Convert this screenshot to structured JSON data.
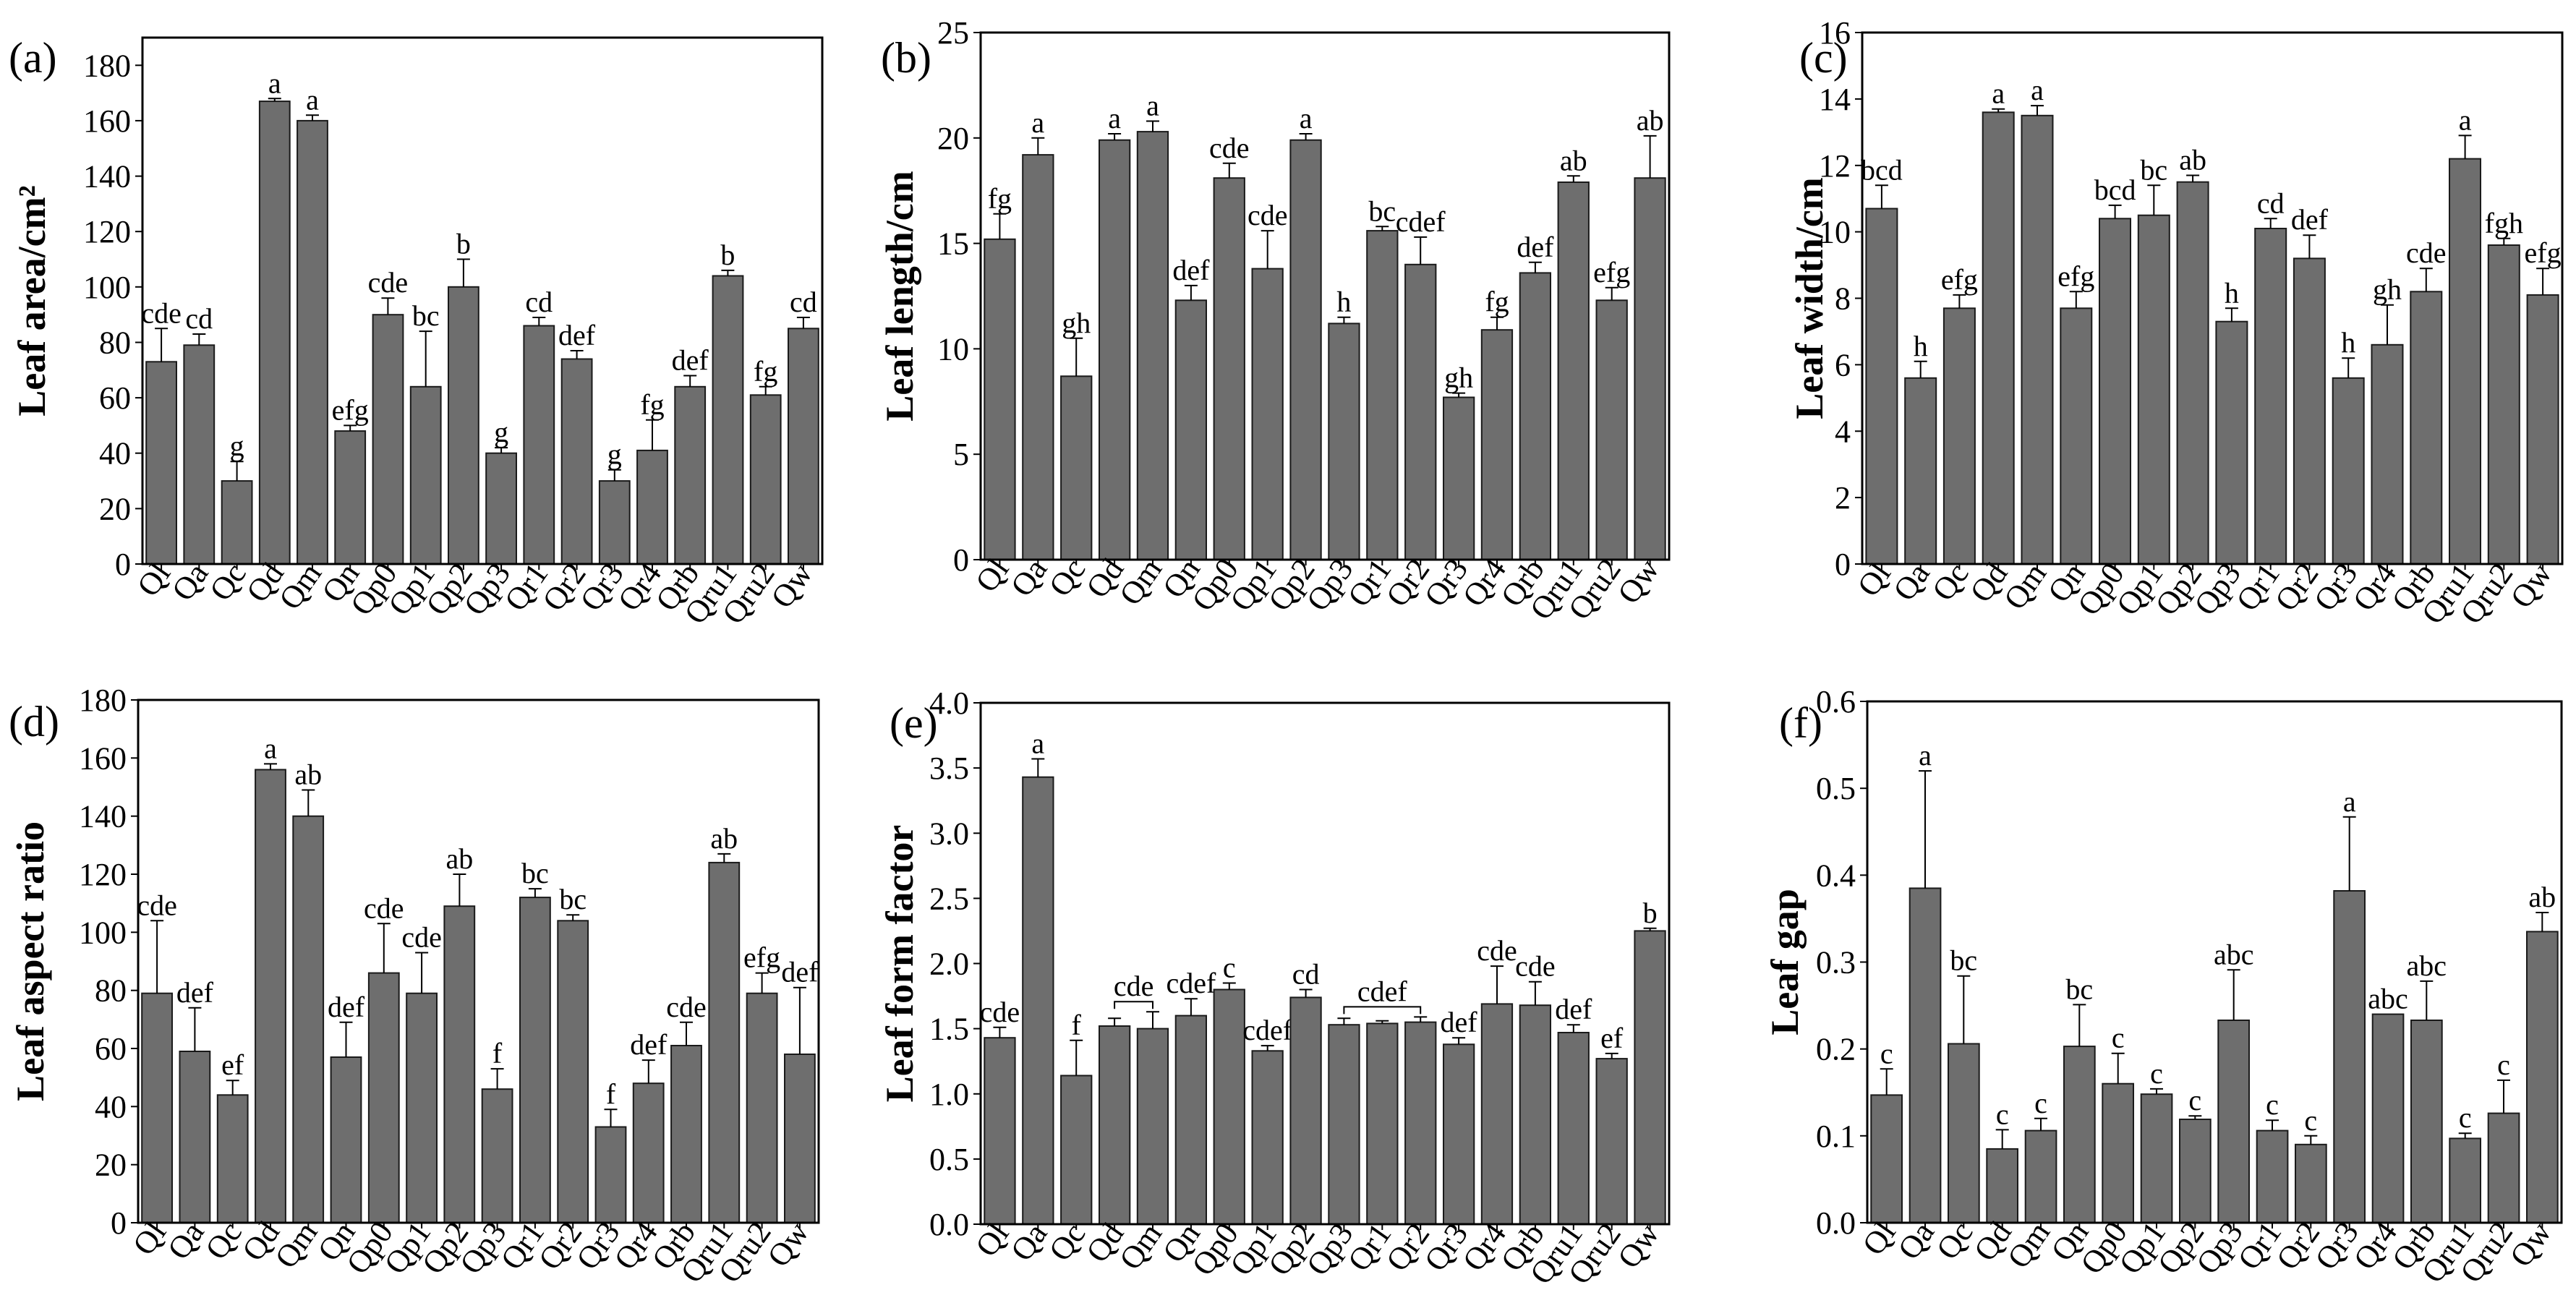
{
  "figure": {
    "colors": {
      "bar": "#6e6e6e",
      "bar_stroke": "#1a1a1a",
      "axis": "#000000"
    }
  },
  "chart_data": [
    {
      "type": "bar",
      "panel": "(a)",
      "title": "",
      "xlabel": "",
      "ylabel": "Leaf area/cm²",
      "ylim": [
        0,
        190
      ],
      "yticks": [
        0,
        20,
        40,
        60,
        80,
        100,
        120,
        140,
        160,
        180
      ],
      "categories": [
        "Ql",
        "Qa",
        "Qc",
        "Qd",
        "Qm",
        "Qn",
        "Qp0",
        "Qp1",
        "Qp2",
        "Qp3",
        "Qr1",
        "Qr2",
        "Qr3",
        "Qr4",
        "Qrb",
        "Qru1",
        "Qru2",
        "Qw"
      ],
      "values": [
        73,
        79,
        30,
        167,
        160,
        48,
        90,
        64,
        100,
        40,
        86,
        74,
        30,
        41,
        64,
        104,
        61,
        85
      ],
      "errors": [
        12,
        4,
        7,
        1,
        2,
        2,
        6,
        20,
        10,
        2,
        3,
        3,
        4,
        11,
        4,
        2,
        3,
        4
      ],
      "letters": [
        "cde",
        "cd",
        "g",
        "a",
        "a",
        "efg",
        "cde",
        "bc",
        "b",
        "g",
        "cd",
        "def",
        "g",
        "fg",
        "def",
        "b",
        "fg",
        "cd"
      ]
    },
    {
      "type": "bar",
      "panel": "(b)",
      "title": "",
      "xlabel": "",
      "ylabel": "Leaf length/cm",
      "ylim": [
        0,
        25
      ],
      "yticks": [
        0,
        5,
        10,
        15,
        20,
        25
      ],
      "categories": [
        "Ql",
        "Qa",
        "Qc",
        "Qd",
        "Qm",
        "Qn",
        "Qp0",
        "Qp1",
        "Qp2",
        "Qp3",
        "Qr1",
        "Qr2",
        "Qr3",
        "Qr4",
        "Qrb",
        "Qru1",
        "Qru2",
        "Qw"
      ],
      "values": [
        15.2,
        19.2,
        8.7,
        19.9,
        20.3,
        12.3,
        18.1,
        13.8,
        19.9,
        11.2,
        15.6,
        14.0,
        7.7,
        10.9,
        13.6,
        17.9,
        12.3,
        18.1
      ],
      "errors": [
        1.2,
        0.8,
        1.8,
        0.3,
        0.5,
        0.7,
        0.7,
        1.8,
        0.3,
        0.3,
        0.2,
        1.3,
        0.2,
        0.6,
        0.5,
        0.3,
        0.6,
        2.0
      ],
      "letters": [
        "fg",
        "a",
        "gh",
        "a",
        "a",
        "def",
        "cde",
        "cde",
        "a",
        "h",
        "bc",
        "cdef",
        "gh",
        "fg",
        "def",
        "ab",
        "efg",
        "ab"
      ]
    },
    {
      "type": "bar",
      "panel": "(c)",
      "title": "",
      "xlabel": "",
      "ylabel": "Leaf width/cm",
      "ylim": [
        0,
        16
      ],
      "yticks": [
        0,
        2,
        4,
        6,
        8,
        10,
        12,
        14,
        16
      ],
      "categories": [
        "Ql",
        "Qa",
        "Qc",
        "Qd",
        "Qm",
        "Qn",
        "Qp0",
        "Qp1",
        "Qp2",
        "Qp3",
        "Qr1",
        "Qr2",
        "Qr3",
        "Qr4",
        "Qrb",
        "Qru1",
        "Qru2",
        "Qw"
      ],
      "values": [
        10.7,
        5.6,
        7.7,
        13.6,
        13.5,
        7.7,
        10.4,
        10.5,
        11.5,
        7.3,
        10.1,
        9.2,
        5.6,
        6.6,
        8.2,
        12.2,
        9.6,
        8.1
      ],
      "errors": [
        0.7,
        0.5,
        0.4,
        0.1,
        0.3,
        0.5,
        0.4,
        0.9,
        0.2,
        0.4,
        0.3,
        0.7,
        0.6,
        1.2,
        0.7,
        0.7,
        0.2,
        0.8
      ],
      "letters": [
        "bcd",
        "h",
        "efg",
        "a",
        "a",
        "efg",
        "bcd",
        "bc",
        "ab",
        "h",
        "cd",
        "def",
        "h",
        "gh",
        "cde",
        "a",
        "fgh",
        "efg"
      ]
    },
    {
      "type": "bar",
      "panel": "(d)",
      "title": "",
      "xlabel": "",
      "ylabel": "Leaf aspect ratio",
      "ylim": [
        0,
        180
      ],
      "yticks": [
        0,
        20,
        40,
        60,
        80,
        100,
        120,
        140,
        160,
        180
      ],
      "categories": [
        "Ql",
        "Qa",
        "Qc",
        "Qd",
        "Qm",
        "Qn",
        "Qp0",
        "Qp1",
        "Qp2",
        "Qp3",
        "Qr1",
        "Qr2",
        "Qr3",
        "Qr4",
        "Qrb",
        "Qru1",
        "Qru2",
        "Qw"
      ],
      "values": [
        79,
        59,
        44,
        156,
        140,
        57,
        86,
        79,
        109,
        46,
        112,
        104,
        33,
        48,
        61,
        124,
        79,
        58
      ],
      "errors": [
        25,
        15,
        5,
        2,
        9,
        12,
        17,
        14,
        11,
        7,
        3,
        2,
        6,
        8,
        8,
        3,
        7,
        23
      ],
      "letters": [
        "cde",
        "def",
        "ef",
        "a",
        "ab",
        "def",
        "cde",
        "cde",
        "ab",
        "f",
        "bc",
        "bc",
        "f",
        "def",
        "cde",
        "ab",
        "efg",
        "def"
      ]
    },
    {
      "type": "bar",
      "panel": "(e)",
      "title": "",
      "xlabel": "",
      "ylabel": "Leaf form factor",
      "ylim": [
        0,
        4.0
      ],
      "yticks": [
        0.0,
        0.5,
        1.0,
        1.5,
        2.0,
        2.5,
        3.0,
        3.5,
        4.0
      ],
      "categories": [
        "Ql",
        "Qa",
        "Qc",
        "Qd",
        "Qm",
        "Qn",
        "Qp0",
        "Qp1",
        "Qp2",
        "Qp3",
        "Qr1",
        "Qr2",
        "Qr3",
        "Qr4",
        "Qrb",
        "Qru1",
        "Qru2",
        "Qw"
      ],
      "values": [
        1.43,
        3.43,
        1.14,
        1.52,
        1.5,
        1.6,
        1.8,
        1.33,
        1.74,
        1.53,
        1.54,
        1.55,
        1.38,
        1.69,
        1.68,
        1.47,
        1.27,
        2.25
      ],
      "errors": [
        0.08,
        0.14,
        0.27,
        0.06,
        0.13,
        0.13,
        0.05,
        0.04,
        0.06,
        0.05,
        0.02,
        0.04,
        0.05,
        0.29,
        0.18,
        0.06,
        0.04,
        0.02
      ],
      "letters": [
        "cde",
        "a",
        "f",
        "",
        "",
        "cdef",
        "c",
        "cdef",
        "cd",
        "",
        "",
        "",
        "def",
        "cde",
        "cde",
        "def",
        "ef",
        "b"
      ],
      "group_labels": [
        {
          "text": "cde",
          "from": 3,
          "to": 4
        },
        {
          "text": "cdef",
          "from": 9,
          "to": 11
        }
      ]
    },
    {
      "type": "bar",
      "panel": "(f)",
      "title": "",
      "xlabel": "",
      "ylabel": "Leaf gap",
      "ylim": [
        0,
        0.6
      ],
      "yticks": [
        0.0,
        0.1,
        0.2,
        0.3,
        0.4,
        0.5,
        0.6
      ],
      "categories": [
        "Ql",
        "Qa",
        "Qc",
        "Qd",
        "Qm",
        "Qn",
        "Qp0",
        "Qp1",
        "Qp2",
        "Qp3",
        "Qr1",
        "Qr2",
        "Qr3",
        "Qr4",
        "Qrb",
        "Qru1",
        "Qru2",
        "Qw"
      ],
      "values": [
        0.147,
        0.385,
        0.206,
        0.085,
        0.106,
        0.203,
        0.16,
        0.148,
        0.119,
        0.233,
        0.106,
        0.09,
        0.382,
        0.24,
        0.233,
        0.097,
        0.126,
        0.335
      ],
      "errors": [
        0.03,
        0.135,
        0.078,
        0.022,
        0.014,
        0.048,
        0.035,
        0.006,
        0.004,
        0.058,
        0.012,
        0.01,
        0.085,
        0.0,
        0.045,
        0.006,
        0.038,
        0.022
      ],
      "letters": [
        "c",
        "a",
        "bc",
        "c",
        "c",
        "bc",
        "c",
        "c",
        "c",
        "abc",
        "c",
        "c",
        "a",
        "abc",
        "abc",
        "c",
        "c",
        "ab"
      ]
    }
  ]
}
